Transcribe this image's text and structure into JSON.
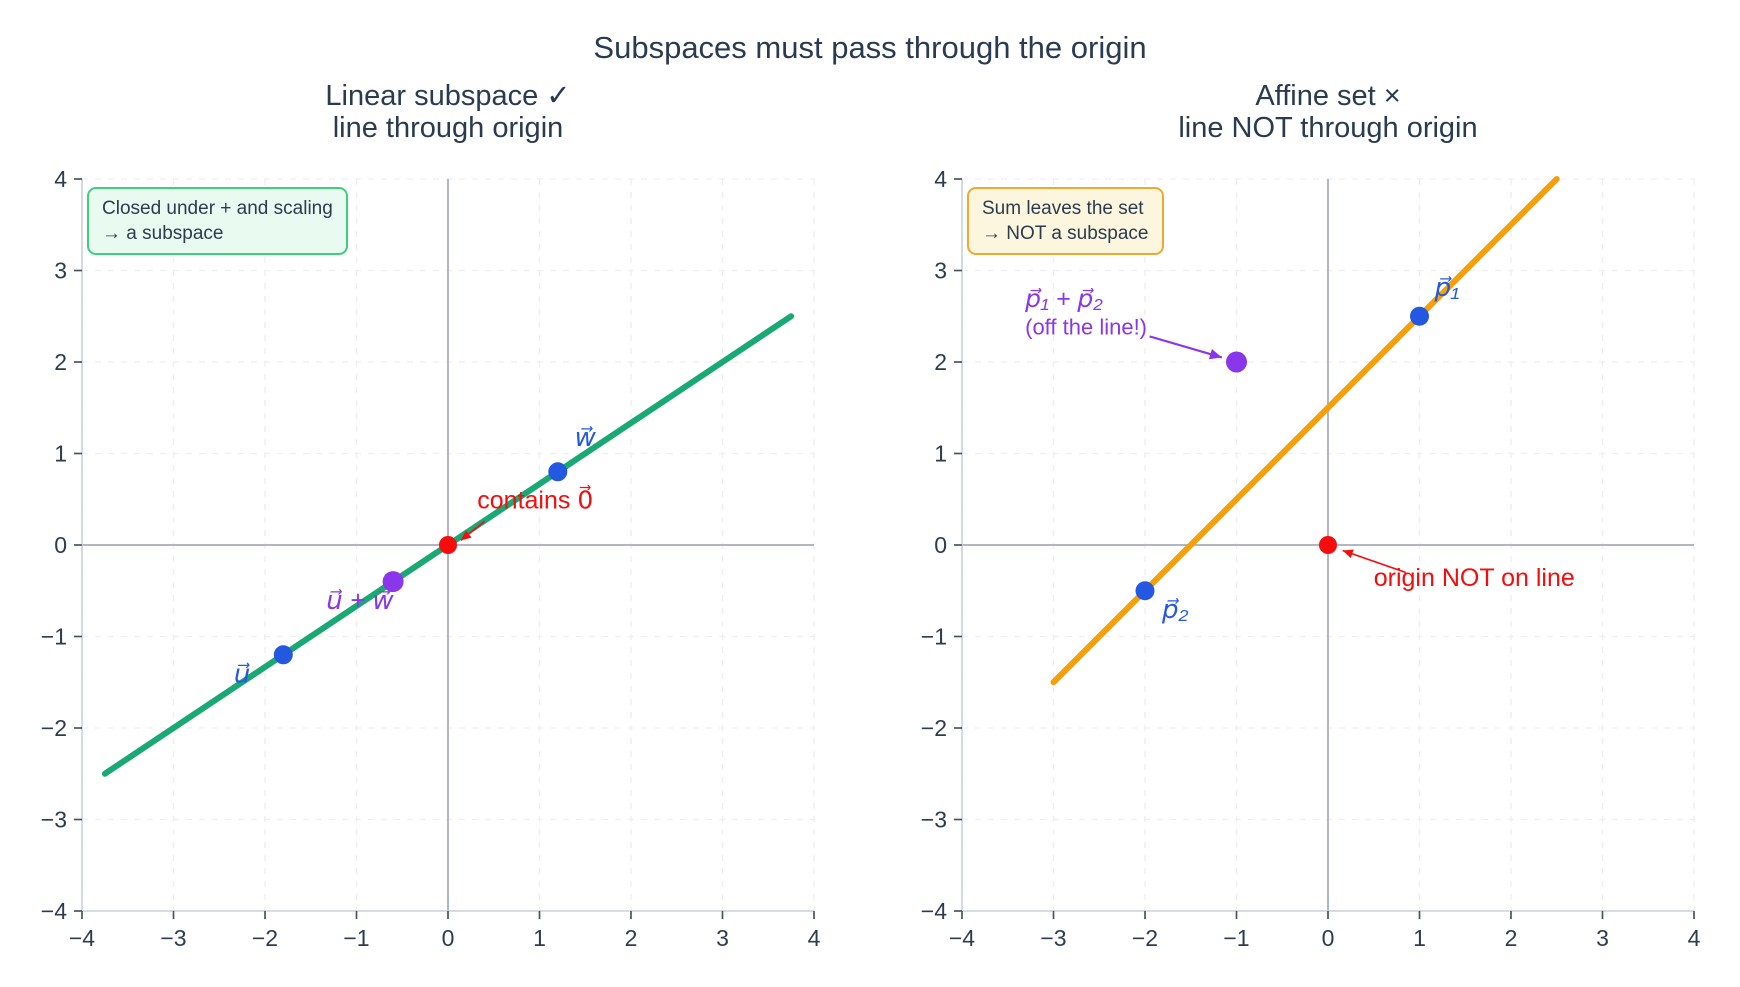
{
  "figure": {
    "suptitle": "Subspaces must pass through the origin",
    "background": "#ffffff",
    "text_color": "#2a3a50",
    "grid_color": "#efefef",
    "zero_axis_color": "#b0b7c0",
    "spine_color": "#ccd1d8",
    "tick_color": "#4a5562",
    "tick_label_color": "#2e3c4e"
  },
  "chart_data": [
    {
      "type": "line",
      "title": "Linear subspace ✓\nline through origin",
      "xlabel": "",
      "ylabel": "",
      "xlim": [
        -4,
        4
      ],
      "ylim": [
        -4,
        4
      ],
      "grid": "dashed",
      "legend": "none",
      "xticks": [
        -4,
        -3,
        -2,
        -1,
        0,
        1,
        2,
        3,
        4
      ],
      "yticks": [
        -4,
        -3,
        -2,
        -1,
        0,
        1,
        2,
        3,
        4
      ],
      "xtick_labels": [
        "−4",
        "−3",
        "−2",
        "−1",
        "0",
        "1",
        "2",
        "3",
        "4"
      ],
      "ytick_labels": [
        "−4",
        "−3",
        "−2",
        "−1",
        "0",
        "1",
        "2",
        "3",
        "4"
      ],
      "series": [
        {
          "name": "subspace-line",
          "color": "#1aa874",
          "width": 6,
          "x": [
            -3.75,
            3.75
          ],
          "y": [
            -2.5,
            2.5
          ]
        }
      ],
      "points": [
        {
          "name": "u",
          "x": -1.8,
          "y": -1.2,
          "color": "#2558e0",
          "r": 9.5
        },
        {
          "name": "w",
          "x": 1.2,
          "y": 0.8,
          "color": "#2558e0",
          "r": 9.5
        },
        {
          "name": "u-plus-w",
          "x": -0.6,
          "y": -0.4,
          "color": "#8a36ea",
          "r": 10.5
        },
        {
          "name": "origin",
          "x": 0,
          "y": 0,
          "color": "#f50d0d",
          "r": 9
        }
      ],
      "labels": [
        {
          "name": "u-label",
          "text": "u⃗",
          "x": -2.25,
          "y": -1.5,
          "color": "#2558e0",
          "size": 26,
          "style": "italic",
          "anchor": "middle"
        },
        {
          "name": "w-label",
          "text": "w⃗",
          "x": 1.5,
          "y": 1.08,
          "color": "#2558e0",
          "size": 26,
          "style": "italic",
          "anchor": "middle"
        },
        {
          "name": "u-plus-w-label",
          "text": "u⃗ + w⃗",
          "x": -1.33,
          "y": -0.7,
          "color": "#8a36ea",
          "size": 26,
          "style": "italic",
          "anchor": "start"
        },
        {
          "name": "contains-zero-label",
          "text": "contains 0⃗",
          "x": 0.32,
          "y": 0.4,
          "color": "#f50d0d",
          "size": 25,
          "style": "normal",
          "anchor": "start"
        }
      ],
      "arrows": [
        {
          "name": "contains-zero-arrow",
          "x1": 0.4,
          "y1": 0.26,
          "x2": 0.14,
          "y2": 0.05,
          "color": "#f50d0d",
          "width": 1.6
        }
      ],
      "note_box": {
        "text": "Closed under + and scaling\n→ a subspace",
        "border_color": "#3dcf80",
        "fill_color": "#e9faf1"
      }
    },
    {
      "type": "line",
      "title": "Affine set ×\nline NOT through origin",
      "xlabel": "",
      "ylabel": "",
      "xlim": [
        -4,
        4
      ],
      "ylim": [
        -4,
        4
      ],
      "grid": "dashed",
      "legend": "none",
      "xticks": [
        -4,
        -3,
        -2,
        -1,
        0,
        1,
        2,
        3,
        4
      ],
      "yticks": [
        -4,
        -3,
        -2,
        -1,
        0,
        1,
        2,
        3,
        4
      ],
      "xtick_labels": [
        "−4",
        "−3",
        "−2",
        "−1",
        "0",
        "1",
        "2",
        "3",
        "4"
      ],
      "ytick_labels": [
        "−4",
        "−3",
        "−2",
        "−1",
        "0",
        "1",
        "2",
        "3",
        "4"
      ],
      "series": [
        {
          "name": "affine-line",
          "color": "#f5a00b",
          "width": 6,
          "x": [
            -3,
            2.5
          ],
          "y": [
            -1.5,
            4
          ]
        }
      ],
      "points": [
        {
          "name": "p1",
          "x": 1,
          "y": 2.5,
          "color": "#2558e0",
          "r": 9.5
        },
        {
          "name": "p2",
          "x": -2,
          "y": -0.5,
          "color": "#2558e0",
          "r": 9.5
        },
        {
          "name": "p1-plus-p2",
          "x": -1,
          "y": 2,
          "color": "#8a36ea",
          "r": 10.5
        },
        {
          "name": "origin",
          "x": 0,
          "y": 0,
          "color": "#f50d0d",
          "r": 9
        }
      ],
      "labels": [
        {
          "name": "p1-label",
          "text": "p⃗₁",
          "x": 1.3,
          "y": 2.72,
          "color": "#2558e0",
          "size": 26,
          "style": "italic",
          "anchor": "middle"
        },
        {
          "name": "p2-label",
          "text": "p⃗₂",
          "x": -1.67,
          "y": -0.8,
          "color": "#2558e0",
          "size": 26,
          "style": "italic",
          "anchor": "middle"
        },
        {
          "name": "p1-plus-p2-label",
          "text": "p⃗₁ + p⃗₂",
          "x": -3.31,
          "y": 2.6,
          "color": "#8a36ea",
          "size": 25,
          "style": "italic",
          "anchor": "start"
        },
        {
          "name": "off-the-line-label",
          "text": "(off the line!)",
          "x": -3.31,
          "y": 2.3,
          "color": "#8a36ea",
          "size": 22,
          "style": "normal",
          "anchor": "start"
        },
        {
          "name": "origin-not-on-line-label",
          "text": "origin NOT on line",
          "x": 0.5,
          "y": -0.45,
          "color": "#f50d0d",
          "size": 25,
          "style": "normal",
          "anchor": "start"
        }
      ],
      "arrows": [
        {
          "name": "sum-point-arrow",
          "x1": -1.95,
          "y1": 2.28,
          "x2": -1.16,
          "y2": 2.05,
          "color": "#8a36ea",
          "width": 2.2
        },
        {
          "name": "origin-arrow",
          "x1": 0.85,
          "y1": -0.3,
          "x2": 0.16,
          "y2": -0.06,
          "color": "#f50d0d",
          "width": 1.6
        }
      ],
      "note_box": {
        "text": "Sum leaves the set\n→ NOT a subspace",
        "border_color": "#f0a830",
        "fill_color": "#fdf6de"
      }
    }
  ]
}
